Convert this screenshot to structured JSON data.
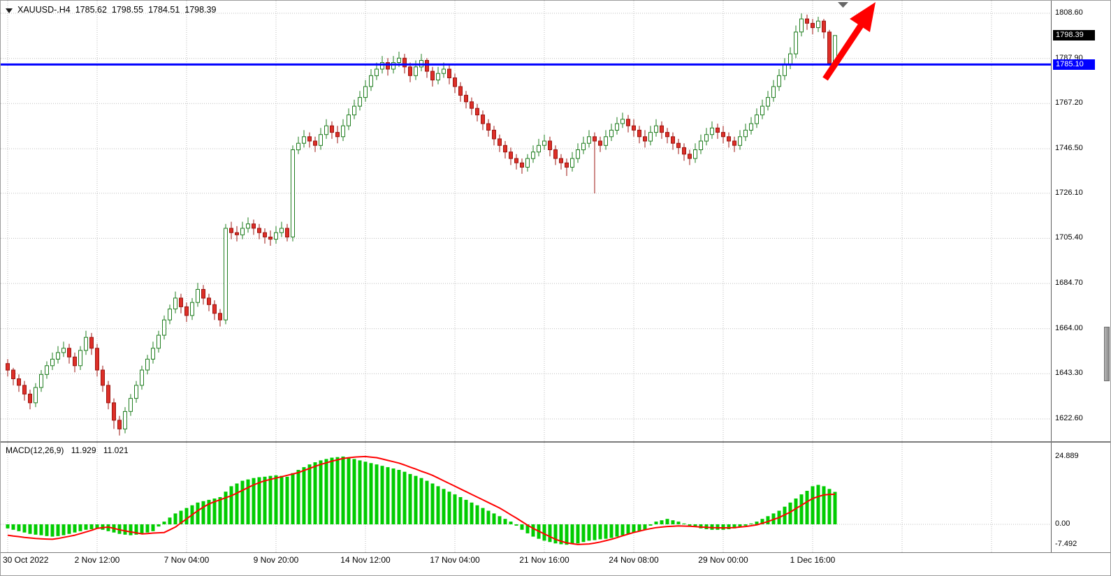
{
  "window": {
    "symbol": "XAUUSD-.H4",
    "open": "1785.62",
    "high": "1798.55",
    "low": "1784.51",
    "close": "1798.39"
  },
  "colors": {
    "bull_fill": "#ffffff",
    "bull_line": "#1e7d1e",
    "bear_fill": "#dd2f28",
    "bear_line": "#9c1410",
    "grid": "#bdbdbd",
    "hline": "#0000ff",
    "current_badge_bg": "#000000",
    "hline_badge_bg": "#0000ff",
    "badge_text": "#ffffff",
    "macd_hist": "#00cc00",
    "macd_signal": "#ff0000",
    "arrow": "#ff0000",
    "marker": "#666666"
  },
  "price_axis": {
    "labels": [
      "1808.60",
      "1787.90",
      "1767.20",
      "1746.50",
      "1726.10",
      "1705.40",
      "1684.70",
      "1664.00",
      "1643.30",
      "1622.60"
    ],
    "current_price": "1798.39",
    "hline_price": "1785.10"
  },
  "time_axis": {
    "labels": [
      "30 Oct 2022",
      "2 Nov 12:00",
      "7 Nov 04:00",
      "9 Nov 20:00",
      "14 Nov 12:00",
      "17 Nov 04:00",
      "21 Nov 16:00",
      "24 Nov 08:00",
      "29 Nov 00:00",
      "1 Dec 16:00"
    ]
  },
  "indicator": {
    "label": "MACD(12,26,9)",
    "value_main": "11.929",
    "value_signal": "11.021",
    "axis_labels": [
      "24.889",
      "0.00",
      "-7.492"
    ]
  },
  "annotations": {
    "trend_arrow": {
      "type": "arrow",
      "direction": "up-right",
      "color": "#ff0000"
    },
    "top_marker": {
      "type": "triangle-down",
      "color": "#666666"
    }
  },
  "chart_data": [
    {
      "type": "candlestick",
      "title": "XAUUSD- H4",
      "ylim": [
        1622.6,
        1808.6
      ],
      "grid": true,
      "hline": 1785.1,
      "current_close": 1798.39,
      "x_labels": [
        "30 Oct 2022",
        "2 Nov 12:00",
        "7 Nov 04:00",
        "9 Nov 20:00",
        "14 Nov 12:00",
        "17 Nov 04:00",
        "21 Nov 16:00",
        "24 Nov 08:00",
        "29 Nov 00:00",
        "1 Dec 16:00"
      ],
      "candles": [
        [
          1648,
          1650,
          1642,
          1645
        ],
        [
          1645,
          1646,
          1638,
          1641
        ],
        [
          1641,
          1643,
          1635,
          1638
        ],
        [
          1638,
          1640,
          1631,
          1634
        ],
        [
          1634,
          1636,
          1627,
          1630
        ],
        [
          1630,
          1639,
          1628,
          1637
        ],
        [
          1637,
          1645,
          1635,
          1643
        ],
        [
          1643,
          1649,
          1641,
          1647
        ],
        [
          1647,
          1653,
          1645,
          1650
        ],
        [
          1650,
          1656,
          1648,
          1653
        ],
        [
          1653,
          1658,
          1651,
          1655
        ],
        [
          1655,
          1657,
          1648,
          1651
        ],
        [
          1651,
          1653,
          1644,
          1647
        ],
        [
          1647,
          1656,
          1645,
          1654
        ],
        [
          1654,
          1663,
          1652,
          1660
        ],
        [
          1660,
          1662,
          1652,
          1655
        ],
        [
          1655,
          1657,
          1642,
          1645
        ],
        [
          1645,
          1647,
          1635,
          1638
        ],
        [
          1638,
          1640,
          1627,
          1630
        ],
        [
          1630,
          1632,
          1618,
          1622
        ],
        [
          1622,
          1624,
          1615,
          1618
        ],
        [
          1618,
          1628,
          1616,
          1626
        ],
        [
          1626,
          1634,
          1624,
          1632
        ],
        [
          1632,
          1640,
          1630,
          1638
        ],
        [
          1638,
          1647,
          1636,
          1645
        ],
        [
          1645,
          1652,
          1643,
          1650
        ],
        [
          1650,
          1658,
          1648,
          1655
        ],
        [
          1655,
          1663,
          1653,
          1661
        ],
        [
          1661,
          1670,
          1659,
          1668
        ],
        [
          1668,
          1675,
          1666,
          1673
        ],
        [
          1673,
          1681,
          1671,
          1678
        ],
        [
          1678,
          1680,
          1671,
          1674
        ],
        [
          1674,
          1676,
          1667,
          1670
        ],
        [
          1670,
          1678,
          1668,
          1676
        ],
        [
          1676,
          1685,
          1674,
          1682
        ],
        [
          1682,
          1684,
          1675,
          1678
        ],
        [
          1678,
          1680,
          1672,
          1675
        ],
        [
          1675,
          1677,
          1668,
          1671
        ],
        [
          1671,
          1673,
          1665,
          1668
        ],
        [
          1668,
          1712,
          1666,
          1710
        ],
        [
          1710,
          1713,
          1705,
          1708
        ],
        [
          1708,
          1711,
          1704,
          1707
        ],
        [
          1707,
          1713,
          1705,
          1710
        ],
        [
          1710,
          1715,
          1708,
          1712
        ],
        [
          1712,
          1714,
          1707,
          1710
        ],
        [
          1710,
          1712,
          1705,
          1708
        ],
        [
          1708,
          1710,
          1703,
          1706
        ],
        [
          1706,
          1709,
          1702,
          1705
        ],
        [
          1705,
          1711,
          1703,
          1708
        ],
        [
          1708,
          1713,
          1706,
          1710
        ],
        [
          1710,
          1712,
          1704,
          1706
        ],
        [
          1706,
          1748,
          1704,
          1746
        ],
        [
          1746,
          1752,
          1744,
          1749
        ],
        [
          1749,
          1755,
          1747,
          1752
        ],
        [
          1752,
          1754,
          1747,
          1750
        ],
        [
          1750,
          1752,
          1745,
          1748
        ],
        [
          1748,
          1756,
          1746,
          1753
        ],
        [
          1753,
          1760,
          1751,
          1757
        ],
        [
          1757,
          1759,
          1751,
          1754
        ],
        [
          1754,
          1757,
          1749,
          1752
        ],
        [
          1752,
          1760,
          1750,
          1757
        ],
        [
          1757,
          1765,
          1755,
          1762
        ],
        [
          1762,
          1769,
          1760,
          1766
        ],
        [
          1766,
          1773,
          1764,
          1770
        ],
        [
          1770,
          1778,
          1768,
          1775
        ],
        [
          1775,
          1783,
          1773,
          1780
        ],
        [
          1780,
          1786,
          1778,
          1783
        ],
        [
          1783,
          1789,
          1781,
          1786
        ],
        [
          1786,
          1788,
          1780,
          1783
        ],
        [
          1783,
          1789,
          1781,
          1786
        ],
        [
          1786,
          1791,
          1784,
          1788
        ],
        [
          1788,
          1790,
          1781,
          1784
        ],
        [
          1784,
          1786,
          1777,
          1780
        ],
        [
          1780,
          1787,
          1778,
          1784
        ],
        [
          1784,
          1790,
          1782,
          1787
        ],
        [
          1787,
          1788,
          1779,
          1782
        ],
        [
          1782,
          1784,
          1775,
          1778
        ],
        [
          1778,
          1784,
          1776,
          1781
        ],
        [
          1781,
          1786,
          1779,
          1783
        ],
        [
          1783,
          1785,
          1776,
          1779
        ],
        [
          1779,
          1781,
          1772,
          1775
        ],
        [
          1775,
          1777,
          1768,
          1771
        ],
        [
          1771,
          1773,
          1765,
          1768
        ],
        [
          1768,
          1770,
          1762,
          1765
        ],
        [
          1765,
          1767,
          1759,
          1762
        ],
        [
          1762,
          1764,
          1755,
          1758
        ],
        [
          1758,
          1760,
          1752,
          1755
        ],
        [
          1755,
          1757,
          1748,
          1751
        ],
        [
          1751,
          1753,
          1745,
          1748
        ],
        [
          1748,
          1750,
          1742,
          1745
        ],
        [
          1745,
          1747,
          1739,
          1742
        ],
        [
          1742,
          1744,
          1737,
          1740
        ],
        [
          1740,
          1742,
          1735,
          1738
        ],
        [
          1738,
          1744,
          1736,
          1742
        ],
        [
          1742,
          1748,
          1740,
          1745
        ],
        [
          1745,
          1751,
          1743,
          1748
        ],
        [
          1748,
          1753,
          1746,
          1750
        ],
        [
          1750,
          1752,
          1743,
          1746
        ],
        [
          1746,
          1748,
          1739,
          1742
        ],
        [
          1742,
          1744,
          1737,
          1740
        ],
        [
          1740,
          1742,
          1734,
          1738
        ],
        [
          1738,
          1745,
          1736,
          1742
        ],
        [
          1742,
          1749,
          1740,
          1746
        ],
        [
          1746,
          1752,
          1744,
          1749
        ],
        [
          1749,
          1755,
          1747,
          1752
        ],
        [
          1752,
          1754,
          1726,
          1750
        ],
        [
          1750,
          1752,
          1745,
          1748
        ],
        [
          1748,
          1755,
          1746,
          1752
        ],
        [
          1752,
          1758,
          1750,
          1755
        ],
        [
          1755,
          1761,
          1753,
          1758
        ],
        [
          1758,
          1763,
          1756,
          1760
        ],
        [
          1760,
          1762,
          1754,
          1757
        ],
        [
          1757,
          1760,
          1752,
          1755
        ],
        [
          1755,
          1757,
          1749,
          1752
        ],
        [
          1752,
          1755,
          1747,
          1750
        ],
        [
          1750,
          1757,
          1748,
          1754
        ],
        [
          1754,
          1760,
          1752,
          1757
        ],
        [
          1757,
          1759,
          1751,
          1754
        ],
        [
          1754,
          1756,
          1749,
          1752
        ],
        [
          1752,
          1754,
          1746,
          1749
        ],
        [
          1749,
          1751,
          1744,
          1747
        ],
        [
          1747,
          1749,
          1741,
          1744
        ],
        [
          1744,
          1746,
          1739,
          1742
        ],
        [
          1742,
          1749,
          1740,
          1746
        ],
        [
          1746,
          1753,
          1744,
          1750
        ],
        [
          1750,
          1756,
          1748,
          1753
        ],
        [
          1753,
          1759,
          1751,
          1756
        ],
        [
          1756,
          1758,
          1751,
          1754
        ],
        [
          1754,
          1757,
          1749,
          1752
        ],
        [
          1752,
          1754,
          1747,
          1750
        ],
        [
          1750,
          1752,
          1745,
          1748
        ],
        [
          1748,
          1755,
          1746,
          1752
        ],
        [
          1752,
          1758,
          1750,
          1755
        ],
        [
          1755,
          1761,
          1753,
          1758
        ],
        [
          1758,
          1765,
          1756,
          1762
        ],
        [
          1762,
          1769,
          1760,
          1766
        ],
        [
          1766,
          1773,
          1764,
          1770
        ],
        [
          1770,
          1778,
          1768,
          1775
        ],
        [
          1775,
          1783,
          1773,
          1780
        ],
        [
          1780,
          1788,
          1778,
          1785
        ],
        [
          1785,
          1793,
          1783,
          1790
        ],
        [
          1790,
          1803,
          1788,
          1800
        ],
        [
          1800,
          1808.5,
          1798,
          1806
        ],
        [
          1806,
          1808,
          1801,
          1804
        ],
        [
          1804,
          1806,
          1799,
          1802
        ],
        [
          1802,
          1807,
          1800,
          1805
        ],
        [
          1805,
          1806,
          1797,
          1800
        ],
        [
          1800,
          1801,
          1784.5,
          1785.6
        ],
        [
          1785.6,
          1798.6,
          1784.5,
          1798.4
        ]
      ]
    },
    {
      "type": "bar",
      "name": "MACD",
      "params": [
        12,
        26,
        9
      ],
      "current_values": [
        11.929,
        11.021
      ],
      "ylim": [
        -7.492,
        24.889
      ],
      "hist": [
        -1.5,
        -2.0,
        -2.5,
        -3.0,
        -3.5,
        -3.8,
        -4.0,
        -4.3,
        -4.5,
        -4.3,
        -4.0,
        -3.5,
        -3.0,
        -2.5,
        -2.0,
        -1.8,
        -1.5,
        -2.0,
        -2.5,
        -3.0,
        -3.5,
        -3.8,
        -4.0,
        -3.8,
        -3.5,
        -3.0,
        -2.5,
        -0.8,
        1.0,
        2.5,
        4.0,
        5.0,
        6.0,
        7.0,
        8.0,
        8.5,
        9.0,
        9.5,
        10.0,
        12.0,
        14.0,
        15.0,
        16.0,
        16.5,
        17.0,
        17.3,
        17.5,
        17.8,
        18.0,
        17.8,
        17.5,
        18.8,
        20.0,
        21.0,
        22.0,
        22.8,
        23.5,
        24.0,
        24.5,
        24.7,
        24.889,
        24.5,
        24.0,
        23.5,
        23.0,
        22.5,
        22.0,
        21.5,
        21.0,
        20.5,
        20.0,
        19.3,
        18.5,
        17.8,
        17.0,
        16.0,
        15.0,
        14.0,
        13.0,
        12.0,
        11.0,
        10.0,
        9.0,
        8.0,
        7.0,
        6.0,
        5.0,
        4.0,
        3.0,
        2.0,
        1.0,
        -0.5,
        -2.0,
        -3.3,
        -4.5,
        -5.3,
        -6.0,
        -6.5,
        -7.0,
        -7.3,
        -7.492,
        -7.3,
        -7.0,
        -6.5,
        -6.0,
        -5.8,
        -5.5,
        -5.3,
        -5.0,
        -4.5,
        -4.0,
        -3.5,
        -3.0,
        -2.5,
        -2.0,
        -0.5,
        1.0,
        1.5,
        2.0,
        1.5,
        1.0,
        0.3,
        -0.5,
        -1.0,
        -1.5,
        -1.8,
        -2.0,
        -2.0,
        -2.0,
        -1.8,
        -1.5,
        -1.0,
        -0.5,
        0.3,
        1.0,
        2.0,
        3.0,
        4.0,
        5.0,
        6.5,
        8.0,
        9.5,
        11.0,
        12.3,
        14.0,
        14.5,
        14.0,
        13.0,
        11.929
      ],
      "signal": [
        -4.0,
        -4.3,
        -4.5,
        -4.8,
        -5.0,
        -5.2,
        -5.3,
        -5.4,
        -5.5,
        -5.2,
        -4.8,
        -4.4,
        -4.0,
        -3.4,
        -2.8,
        -2.2,
        -1.5,
        -1.2,
        -1.0,
        -1.5,
        -2.0,
        -2.4,
        -2.8,
        -3.1,
        -3.5,
        -3.4,
        -3.2,
        -3.1,
        -3.0,
        -2.0,
        -1.0,
        0.5,
        2.0,
        3.5,
        5.0,
        6.3,
        7.5,
        8.3,
        9.0,
        9.8,
        10.5,
        11.5,
        12.5,
        13.5,
        14.5,
        15.3,
        16.0,
        16.5,
        17.0,
        17.5,
        18.0,
        18.5,
        19.0,
        19.8,
        20.5,
        21.3,
        22.0,
        22.6,
        23.2,
        23.7,
        24.2,
        24.45,
        24.7,
        24.8,
        24.889,
        24.7,
        24.5,
        24.0,
        23.5,
        23.0,
        22.5,
        21.8,
        21.0,
        20.3,
        19.5,
        18.8,
        18.0,
        17.0,
        16.0,
        15.0,
        14.0,
        13.0,
        12.0,
        11.0,
        10.0,
        9.0,
        8.0,
        7.0,
        6.0,
        4.8,
        3.5,
        2.3,
        1.0,
        -0.3,
        -1.5,
        -2.5,
        -3.5,
        -4.5,
        -5.5,
        -6.2,
        -6.8,
        -7.1,
        -7.4,
        -7.3,
        -7.2,
        -6.9,
        -6.5,
        -6.0,
        -5.5,
        -4.9,
        -4.2,
        -3.6,
        -3.0,
        -2.5,
        -2.0,
        -1.6,
        -1.2,
        -1.0,
        -0.8,
        -0.7,
        -0.6,
        -0.65,
        -0.7,
        -0.85,
        -1.0,
        -1.1,
        -1.2,
        -1.25,
        -1.3,
        -1.25,
        -1.2,
        -1.0,
        -0.8,
        -0.5,
        -0.2,
        0.4,
        1.0,
        1.8,
        2.5,
        3.5,
        4.5,
        5.8,
        7.0,
        8.3,
        9.5,
        10.2,
        10.8,
        11.0,
        11.021
      ]
    }
  ]
}
